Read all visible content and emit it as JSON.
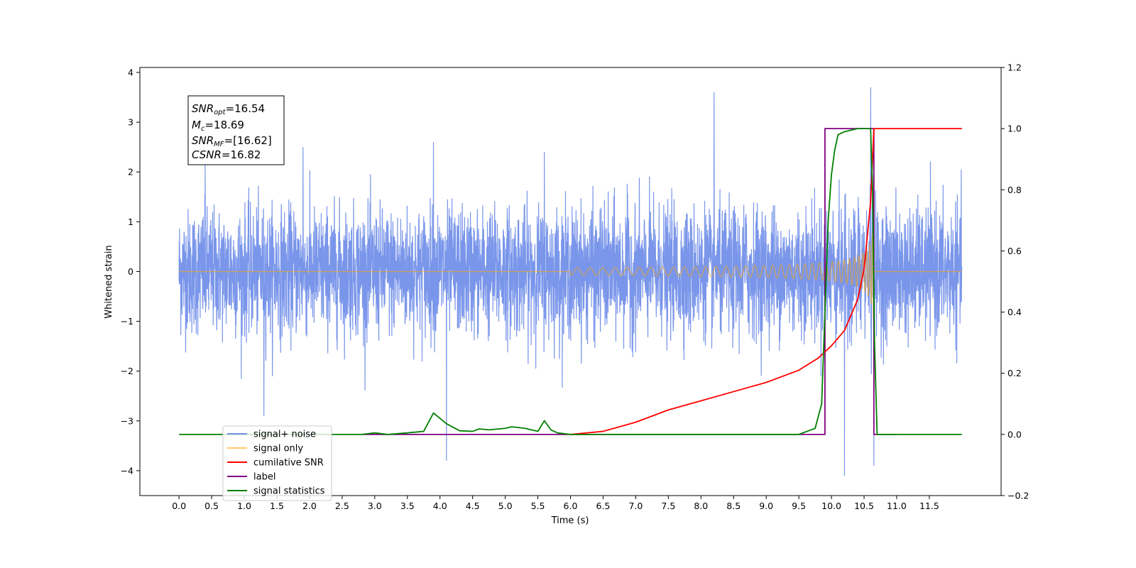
{
  "chart_data": {
    "type": "line",
    "xlabel": "Time (s)",
    "ylabel": "Whitened strain",
    "xlim": [
      -0.6,
      12.6
    ],
    "ylim": [
      -4.5,
      4.1
    ],
    "y2lim": [
      -0.2,
      1.2
    ],
    "xticks": [
      "0.0",
      "0.5",
      "1.0",
      "1.5",
      "2.0",
      "2.5",
      "3.0",
      "3.5",
      "4.0",
      "4.5",
      "5.0",
      "5.5",
      "6.0",
      "6.5",
      "7.0",
      "7.5",
      "8.0",
      "8.5",
      "9.0",
      "9.5",
      "10.0",
      "10.5",
      "11.0",
      "11.5"
    ],
    "yticks": [
      "−4",
      "−3",
      "−2",
      "−1",
      "0",
      "1",
      "2",
      "3",
      "4"
    ],
    "y2ticks": [
      "−0.2",
      "0.0",
      "0.2",
      "0.4",
      "0.6",
      "0.8",
      "1.0",
      "1.2"
    ],
    "annotation": {
      "snr_opt": {
        "sym": "SNR",
        "sub": "opt",
        "value": "=16.54"
      },
      "mc": {
        "sym": "M",
        "sub": "c",
        "value": "=18.69"
      },
      "snr_mf": {
        "sym": "SNR",
        "sub": "MF",
        "value": "=[16.62]"
      },
      "csnr": {
        "sym": "CSNR",
        "sub": "",
        "value": "=16.82"
      }
    },
    "legend": {
      "placement": "lower-left",
      "entries": [
        {
          "label": "signal+ noise",
          "color": "#4169e1"
        },
        {
          "label": "signal only",
          "color": "#ffa500"
        },
        {
          "label": "cumilative SNR",
          "color": "#ff0000"
        },
        {
          "label": "label",
          "color": "#800080"
        },
        {
          "label": "signal statistics",
          "color": "#008000"
        }
      ]
    },
    "series": [
      {
        "name": "signal+ noise",
        "axis": "left",
        "color": "#4169e1",
        "x_range": [
          0.0,
          12.0
        ],
        "noise_envelope": 1.6,
        "peaks": [
          [
            0.4,
            2.2
          ],
          [
            1.3,
            -2.9
          ],
          [
            1.9,
            2.5
          ],
          [
            3.9,
            2.6
          ],
          [
            4.1,
            -3.8
          ],
          [
            5.6,
            2.4
          ],
          [
            8.2,
            3.6
          ],
          [
            10.2,
            -4.1
          ],
          [
            10.6,
            3.7
          ],
          [
            10.65,
            -3.9
          ]
        ]
      },
      {
        "name": "signal only",
        "axis": "left",
        "color": "#ffa500",
        "chirp_start": 6.0,
        "merger": 10.65,
        "peak_amplitude": 3.2
      },
      {
        "name": "cumilative SNR",
        "axis": "right",
        "color": "#ff0000",
        "x": [
          6.0,
          6.5,
          7.0,
          7.5,
          8.0,
          8.5,
          9.0,
          9.5,
          9.8,
          10.0,
          10.2,
          10.4,
          10.5,
          10.6,
          10.65,
          12.0
        ],
        "y": [
          0.0,
          0.01,
          0.04,
          0.08,
          0.11,
          0.14,
          0.17,
          0.21,
          0.25,
          0.29,
          0.34,
          0.44,
          0.54,
          0.76,
          1.0,
          1.0
        ]
      },
      {
        "name": "label",
        "axis": "right",
        "color": "#800080",
        "x": [
          2.8,
          9.9,
          9.9,
          10.65,
          10.65,
          11.0
        ],
        "y": [
          0.0,
          0.0,
          1.0,
          1.0,
          0.0,
          0.0
        ]
      },
      {
        "name": "signal statistics",
        "axis": "right",
        "color": "#008000",
        "x": [
          0.0,
          2.8,
          3.0,
          3.2,
          3.5,
          3.75,
          3.9,
          4.1,
          4.3,
          4.5,
          4.6,
          4.75,
          5.0,
          5.1,
          5.3,
          5.5,
          5.6,
          5.7,
          5.8,
          6.0,
          6.5,
          7.0,
          9.5,
          9.75,
          9.85,
          9.9,
          9.95,
          10.0,
          10.05,
          10.1,
          10.2,
          10.4,
          10.6,
          10.63,
          10.66,
          10.7,
          12.0
        ],
        "y": [
          0.0,
          0.0,
          0.005,
          0.0,
          0.005,
          0.01,
          0.07,
          0.035,
          0.012,
          0.01,
          0.018,
          0.015,
          0.02,
          0.025,
          0.02,
          0.01,
          0.045,
          0.015,
          0.005,
          0.0,
          0.0,
          0.0,
          0.0,
          0.02,
          0.1,
          0.4,
          0.7,
          0.85,
          0.93,
          0.98,
          0.99,
          1.0,
          1.0,
          0.8,
          0.3,
          0.0,
          0.0
        ]
      }
    ]
  }
}
